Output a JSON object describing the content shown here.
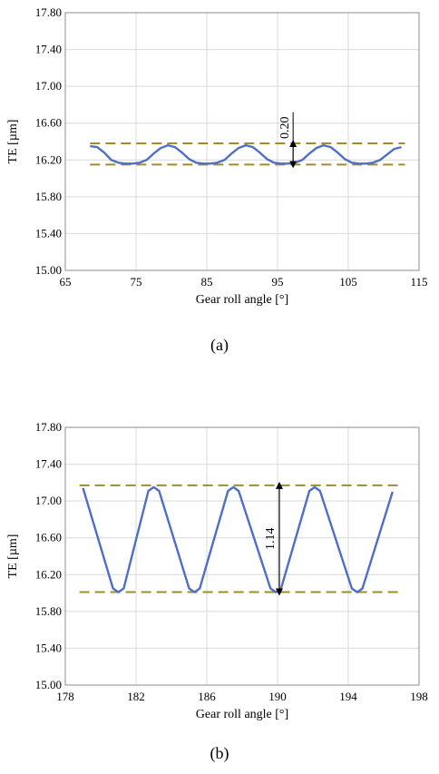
{
  "chart_data": [
    {
      "type": "line",
      "panel_label": "(a)",
      "xlabel": "Gear roll angle [°]",
      "ylabel": "TE [µm]",
      "xlim": [
        65,
        115
      ],
      "ylim": [
        15.0,
        17.8
      ],
      "xticks": [
        65,
        75,
        85,
        95,
        105,
        115
      ],
      "xtick_labels": [
        "65",
        "75",
        "85",
        "95",
        "105",
        "115"
      ],
      "yticks": [
        15.0,
        15.4,
        15.8,
        16.2,
        16.6,
        17.0,
        17.4,
        17.8
      ],
      "ytick_labels": [
        "15.00",
        "15.40",
        "15.80",
        "16.20",
        "16.60",
        "17.00",
        "17.40",
        "17.80"
      ],
      "grid": true,
      "series": [
        {
          "color": "#4f6fc6",
          "x": [
            68.5,
            69.5,
            70.5,
            71.5,
            72.5,
            73.5,
            74.5,
            75.5,
            76.5,
            77.5,
            78.5,
            79.5,
            80.5,
            81.5,
            82.5,
            83.5,
            84.5,
            85.5,
            86.5,
            87.5,
            88.5,
            89.5,
            90.5,
            91.5,
            92.5,
            93.5,
            94.5,
            95.5,
            96.5,
            97.5,
            98.5,
            99.5,
            100.5,
            101.5,
            102.5,
            103.5,
            104.5,
            105.5,
            106.5,
            107.5,
            108.5,
            109.5,
            110.5,
            111.5,
            112.5
          ],
          "y": [
            16.35,
            16.34,
            16.28,
            16.2,
            16.17,
            16.16,
            16.16,
            16.17,
            16.2,
            16.27,
            16.33,
            16.36,
            16.34,
            16.28,
            16.21,
            16.17,
            16.16,
            16.16,
            16.17,
            16.2,
            16.27,
            16.33,
            16.36,
            16.34,
            16.28,
            16.21,
            16.17,
            16.16,
            16.16,
            16.17,
            16.2,
            16.27,
            16.33,
            16.36,
            16.34,
            16.28,
            16.21,
            16.17,
            16.16,
            16.16,
            16.17,
            16.2,
            16.26,
            16.32,
            16.34
          ]
        }
      ],
      "reference_lines": {
        "color": "#a08c2a",
        "upper": 16.38,
        "lower": 16.15,
        "x_range": [
          68.5,
          113.0
        ]
      },
      "annotation": {
        "text": "0.20",
        "arrow_x": 97.2,
        "arrow_top": 16.38,
        "arrow_bottom": 16.15,
        "line_top": 16.72
      }
    },
    {
      "type": "line",
      "panel_label": "(b)",
      "xlabel": "Gear roll angle [°]",
      "ylabel": "TE [µm]",
      "xlim": [
        178,
        198
      ],
      "ylim": [
        15.0,
        17.8
      ],
      "xticks": [
        178,
        182,
        186,
        190,
        194,
        198
      ],
      "xtick_labels": [
        "178",
        "182",
        "186",
        "190",
        "194",
        "198"
      ],
      "yticks": [
        15.0,
        15.4,
        15.8,
        16.2,
        16.6,
        17.0,
        17.4,
        17.8
      ],
      "ytick_labels": [
        "15.00",
        "15.40",
        "15.80",
        "16.20",
        "16.60",
        "17.00",
        "17.40",
        "17.80"
      ],
      "grid": true,
      "series": [
        {
          "color": "#4f6fc6",
          "x": [
            179.0,
            180.7,
            181.0,
            181.3,
            182.7,
            183.0,
            183.3,
            185.0,
            185.3,
            185.6,
            187.2,
            187.5,
            187.8,
            189.6,
            189.9,
            190.2,
            191.8,
            192.1,
            192.4,
            194.2,
            194.5,
            194.8,
            196.5
          ],
          "y": [
            17.14,
            16.05,
            16.01,
            16.05,
            17.11,
            17.15,
            17.11,
            16.05,
            16.01,
            16.05,
            17.11,
            17.15,
            17.11,
            16.05,
            16.01,
            16.05,
            17.11,
            17.15,
            17.11,
            16.05,
            16.01,
            16.05,
            17.1
          ]
        }
      ],
      "reference_lines": {
        "color": "#a08c2a",
        "upper": 17.17,
        "lower": 16.01,
        "x_range": [
          178.8,
          197.0
        ]
      },
      "annotation": {
        "text": "1.14",
        "arrow_x": 190.1,
        "arrow_top": 17.17,
        "arrow_bottom": 16.01,
        "line_top": 17.17
      }
    }
  ]
}
